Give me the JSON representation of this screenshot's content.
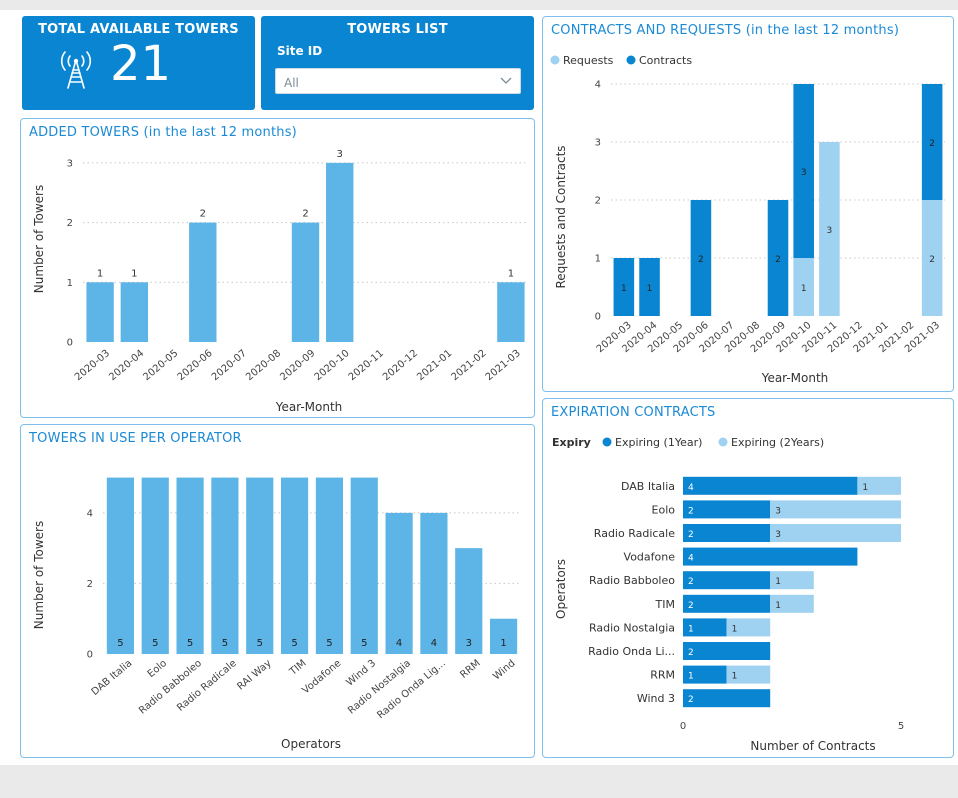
{
  "kpi": {
    "title": "TOTAL AVAILABLE TOWERS",
    "value": "21"
  },
  "slicer": {
    "title": "TOWERS LIST",
    "label": "Site ID",
    "value": "All"
  },
  "colors": {
    "primary": "#0a85d1",
    "light_bar": "#5db4e6",
    "requests": "#9fd1f0",
    "contracts": "#0a85d1",
    "title": "#1a8ad6",
    "grid": "#c8c8c8"
  },
  "charts": {
    "added_towers": {
      "title": "ADDED TOWERS (in the last 12 months)",
      "chart_data": {
        "type": "bar",
        "categories": [
          "2020-03",
          "2020-04",
          "2020-05",
          "2020-06",
          "2020-07",
          "2020-08",
          "2020-09",
          "2020-10",
          "2020-11",
          "2020-12",
          "2021-01",
          "2021-02",
          "2021-03"
        ],
        "values": [
          1,
          1,
          null,
          2,
          null,
          null,
          2,
          3,
          null,
          null,
          null,
          null,
          1
        ],
        "xlabel": "Year-Month",
        "ylabel": "Number of Towers",
        "yticks": [
          0,
          1,
          2,
          3
        ],
        "ylim": [
          0,
          3.4
        ],
        "grid": true
      }
    },
    "contracts_requests": {
      "title": "CONTRACTS AND REQUESTS (in the last 12 months)",
      "chart_data": {
        "type": "bar",
        "stacked": true,
        "categories": [
          "2020-03",
          "2020-04",
          "2020-05",
          "2020-06",
          "2020-07",
          "2020-08",
          "2020-09",
          "2020-10",
          "2020-11",
          "2020-12",
          "2021-01",
          "2021-02",
          "2021-03"
        ],
        "legend": [
          "Requests",
          "Contracts"
        ],
        "series": [
          {
            "name": "Requests",
            "values": [
              0,
              0,
              0,
              0,
              0,
              0,
              0,
              1,
              3,
              0,
              0,
              0,
              2
            ]
          },
          {
            "name": "Contracts",
            "values": [
              1,
              1,
              0,
              2,
              0,
              0,
              2,
              3,
              0,
              0,
              0,
              0,
              2
            ]
          }
        ],
        "xlabel": "Year-Month",
        "ylabel": "Requests and Contracts",
        "yticks": [
          0,
          1,
          2,
          3,
          4
        ],
        "ylim": [
          0,
          4
        ],
        "grid": true
      }
    },
    "towers_per_operator": {
      "title": "TOWERS IN USE PER OPERATOR",
      "chart_data": {
        "type": "bar",
        "categories": [
          "DAB Italia",
          "Eolo",
          "Radio Babboleo",
          "Radio Radicale",
          "RAI Way",
          "TIM",
          "Vodafone",
          "Wind 3",
          "Radio Nostalgia",
          "Radio Onda Lig...",
          "RRM",
          "Wind"
        ],
        "values": [
          5,
          5,
          5,
          5,
          5,
          5,
          5,
          5,
          4,
          4,
          3,
          1
        ],
        "xlabel": "Operators",
        "ylabel": "Number of Towers",
        "yticks": [
          0,
          2,
          4
        ],
        "ylim": [
          0,
          5.3
        ],
        "grid": true
      }
    },
    "expiration_contracts": {
      "title": "EXPIRATION CONTRACTS",
      "chart_data": {
        "type": "bar",
        "orientation": "horizontal",
        "stacked": true,
        "categories": [
          "DAB Italia",
          "Eolo",
          "Radio Radicale",
          "Vodafone",
          "Radio Babboleo",
          "TIM",
          "Radio Nostalgia",
          "Radio Onda Li...",
          "RRM",
          "Wind 3"
        ],
        "legend_title": "Expiry",
        "legend": [
          "Expiring (1Year)",
          "Expiring (2Years)"
        ],
        "series": [
          {
            "name": "Expiring (1Year)",
            "values": [
              4,
              2,
              2,
              4,
              2,
              2,
              1,
              2,
              1,
              2
            ]
          },
          {
            "name": "Expiring (2Years)",
            "values": [
              1,
              3,
              3,
              0,
              1,
              1,
              1,
              0,
              1,
              0
            ]
          }
        ],
        "xlabel": "Number of Contracts",
        "ylabel": "Operators",
        "xticks": [
          0,
          5
        ],
        "xlim": [
          0,
          5
        ],
        "grid": false
      }
    }
  }
}
